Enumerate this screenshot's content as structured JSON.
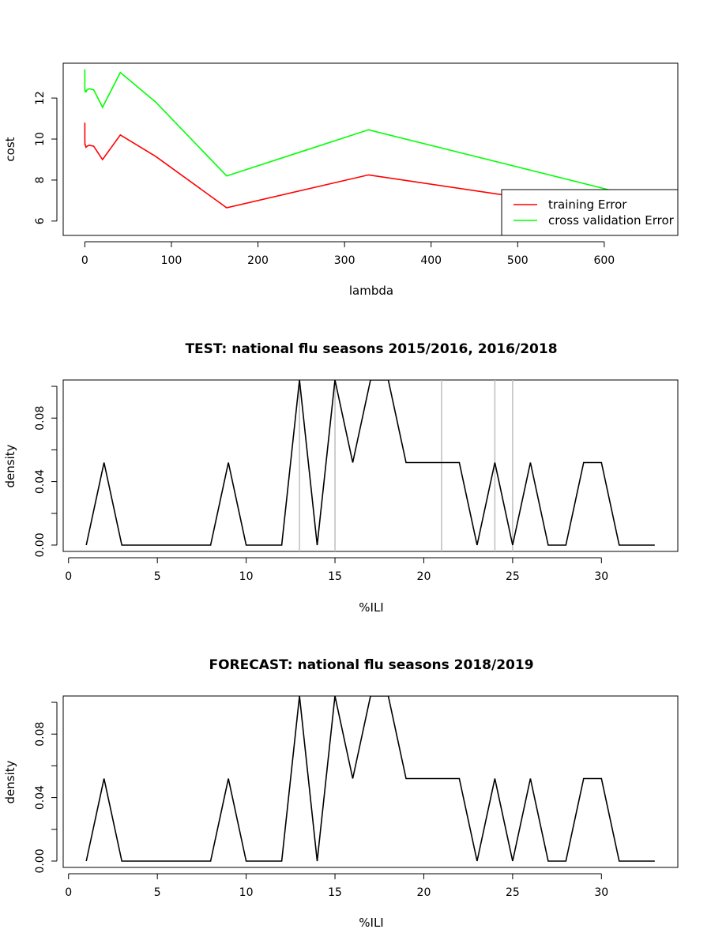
{
  "chart_data": [
    {
      "type": "line",
      "title": "",
      "xlabel": "lambda",
      "ylabel": "cost",
      "xlim": [
        -25,
        685
      ],
      "ylim": [
        5.3,
        13.7
      ],
      "x_ticks": [
        "0",
        "100",
        "200",
        "300",
        "400",
        "500",
        "600"
      ],
      "y_ticks": [
        "6",
        "8",
        "10",
        "12"
      ],
      "legend": {
        "position": "bottom-right",
        "entries": [
          "training Error",
          "cross validation Error"
        ]
      },
      "colors": {
        "training": "#ff0000",
        "cv": "#00ff00"
      },
      "x": [
        0,
        0.01,
        0.02,
        0.04,
        0.08,
        0.16,
        0.32,
        0.64,
        1.28,
        2.56,
        5.12,
        10.24,
        20.48,
        40.96,
        81.92,
        163.84,
        327.68,
        655.36
      ],
      "series": [
        {
          "name": "training Error",
          "values": [
            10.8,
            10.5,
            10.2,
            9.95,
            9.8,
            9.7,
            9.75,
            9.7,
            9.6,
            9.65,
            9.7,
            9.65,
            9.0,
            10.2,
            9.15,
            6.65,
            8.25,
            6.2
          ]
        },
        {
          "name": "cross validation Error",
          "values": [
            13.4,
            13.0,
            12.7,
            12.45,
            12.35,
            12.3,
            12.4,
            12.35,
            12.3,
            12.4,
            12.45,
            12.4,
            11.55,
            13.25,
            11.8,
            8.2,
            10.45,
            7.0
          ]
        }
      ]
    },
    {
      "type": "line",
      "title": "TEST: national flu seasons 2015/2016, 2016/2018",
      "xlabel": "%ILI",
      "ylabel": "density",
      "xlim": [
        -0.3,
        34.3
      ],
      "ylim": [
        -0.004,
        0.104
      ],
      "x_ticks": [
        "0",
        "5",
        "10",
        "15",
        "20",
        "25",
        "30"
      ],
      "y_ticks": [
        "0.00",
        "0.04",
        "0.08"
      ],
      "vlines": [
        13,
        15,
        21,
        24,
        25
      ],
      "x": [
        1,
        2,
        3,
        4,
        5,
        6,
        7,
        8,
        9,
        10,
        11,
        12,
        13,
        14,
        15,
        16,
        17,
        18,
        19,
        20,
        21,
        22,
        23,
        24,
        25,
        26,
        27,
        28,
        29,
        30,
        31,
        32,
        33
      ],
      "series": [
        {
          "values": [
            0.0,
            0.052,
            0.0,
            0.0,
            0.0,
            0.0,
            0.0,
            0.0,
            0.052,
            0.0,
            0.0,
            0.0,
            0.104,
            0.0,
            0.104,
            0.052,
            0.104,
            0.104,
            0.052,
            0.052,
            0.052,
            0.052,
            0.0,
            0.052,
            0.0,
            0.052,
            0.0,
            0.0,
            0.052,
            0.052,
            0.0,
            0.0,
            0.0
          ]
        }
      ]
    },
    {
      "type": "line",
      "title": "FORECAST: national flu seasons 2018/2019",
      "xlabel": "%ILI",
      "ylabel": "density",
      "xlim": [
        -0.3,
        34.3
      ],
      "ylim": [
        -0.004,
        0.104
      ],
      "x_ticks": [
        "0",
        "5",
        "10",
        "15",
        "20",
        "25",
        "30"
      ],
      "y_ticks": [
        "0.00",
        "0.04",
        "0.08"
      ],
      "vlines": [],
      "x": [
        1,
        2,
        3,
        4,
        5,
        6,
        7,
        8,
        9,
        10,
        11,
        12,
        13,
        14,
        15,
        16,
        17,
        18,
        19,
        20,
        21,
        22,
        23,
        24,
        25,
        26,
        27,
        28,
        29,
        30,
        31,
        32,
        33
      ],
      "series": [
        {
          "values": [
            0.0,
            0.052,
            0.0,
            0.0,
            0.0,
            0.0,
            0.0,
            0.0,
            0.052,
            0.0,
            0.0,
            0.0,
            0.104,
            0.0,
            0.104,
            0.052,
            0.104,
            0.104,
            0.052,
            0.052,
            0.052,
            0.052,
            0.0,
            0.052,
            0.0,
            0.052,
            0.0,
            0.0,
            0.052,
            0.052,
            0.0,
            0.0,
            0.0
          ]
        }
      ]
    }
  ]
}
